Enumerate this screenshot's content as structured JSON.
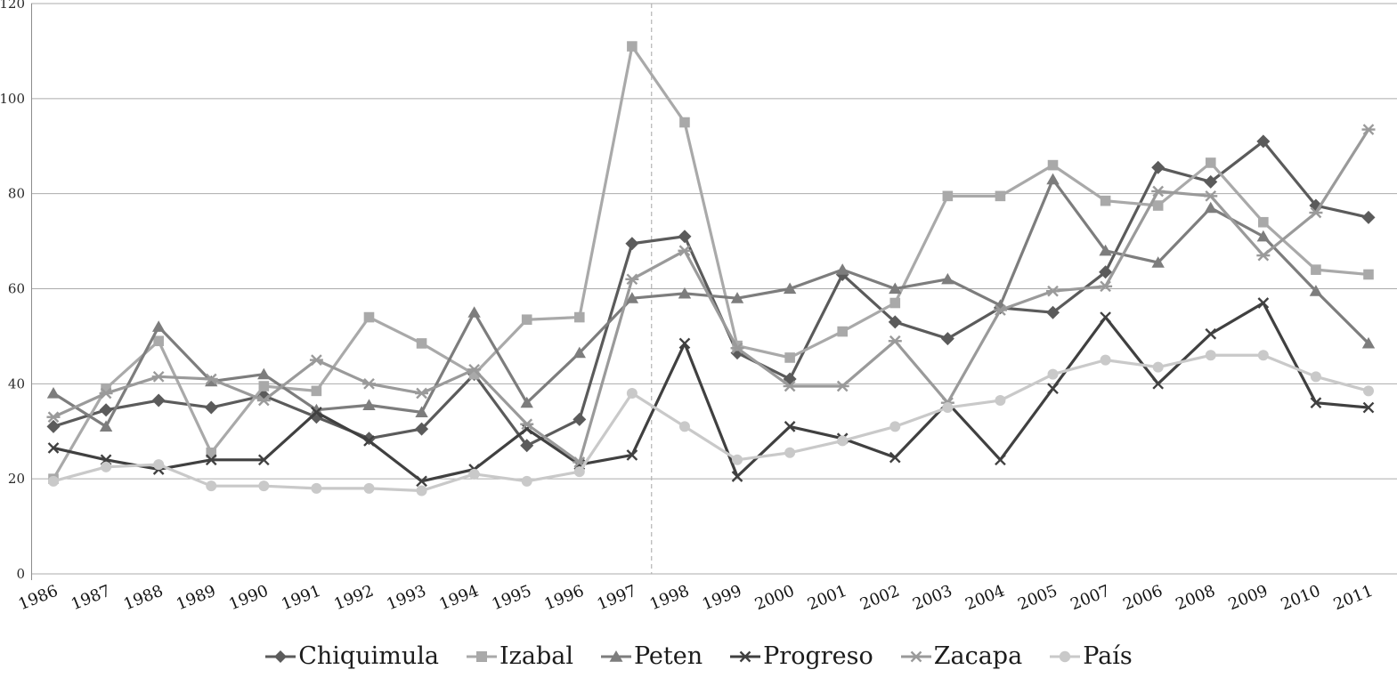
{
  "chart_data": {
    "type": "line",
    "title": "",
    "xlabel": "",
    "ylabel": "",
    "ylim": [
      0,
      120
    ],
    "yticks": [
      0,
      20,
      40,
      60,
      80,
      100,
      120
    ],
    "grid": "horizontal",
    "legend_position": "bottom",
    "x_labels": [
      "1986",
      "1987",
      "1988",
      "1989",
      "1990",
      "1991",
      "1992",
      "1993",
      "1994",
      "1995",
      "1996",
      "1997",
      "1998",
      "1999",
      "2000",
      "2001",
      "2002",
      "2003",
      "2004",
      "2005",
      "2007",
      "2006",
      "2008",
      "2009",
      "2010",
      "2011"
    ],
    "dashed_vline_between": [
      "1997",
      "1998"
    ],
    "dashed_vline_index": 11.37,
    "colors": {
      "gridline": "#ababab",
      "axis": "#8c8c8c",
      "dashed_line": "#b3b3b3",
      "tick_text": "#2a2a2a"
    },
    "series": [
      {
        "name": "Chiquimula",
        "marker": "diamond",
        "color": "#5b5b5b",
        "values": [
          31,
          34.5,
          36.5,
          35,
          37.5,
          33,
          28.5,
          30.5,
          42,
          27,
          32.5,
          69.5,
          71,
          46.5,
          41,
          63,
          53,
          49.5,
          56,
          55,
          63.5,
          85.5,
          82.5,
          91,
          77.5,
          75
        ]
      },
      {
        "name": "Izabal",
        "marker": "square",
        "color": "#a9a9a9",
        "values": [
          20,
          39,
          49,
          25.5,
          39.5,
          38.5,
          54,
          48.5,
          42,
          53.5,
          54,
          111,
          95,
          48,
          45.5,
          51,
          57,
          79.5,
          79.5,
          86,
          78.5,
          77.5,
          86.5,
          74,
          64,
          63
        ]
      },
      {
        "name": "Peten",
        "marker": "triangle",
        "color": "#7d7d7d",
        "values": [
          38,
          31,
          52,
          40.5,
          42,
          34.5,
          35.5,
          34,
          55,
          36,
          46.5,
          58,
          59,
          58,
          60,
          64,
          60,
          62,
          56.5,
          83,
          68,
          65.5,
          77,
          71,
          59.5,
          48.5
        ]
      },
      {
        "name": "Progreso",
        "marker": "x",
        "color": "#404040",
        "values": [
          26.5,
          24,
          22,
          24,
          24,
          34,
          28,
          19.5,
          22,
          30.5,
          23,
          25,
          48.5,
          20.5,
          31,
          28.5,
          24.5,
          36,
          24,
          39,
          54,
          40,
          50.5,
          57,
          36,
          35
        ]
      },
      {
        "name": "Zacapa",
        "marker": "asterisk",
        "color": "#9a9a9a",
        "values": [
          33,
          38,
          41.5,
          41,
          36.5,
          45,
          40,
          38,
          43,
          31.5,
          23.5,
          62,
          68,
          47.5,
          39.5,
          39.5,
          49,
          36,
          55.5,
          59.5,
          60.5,
          80.5,
          79.5,
          67,
          76,
          93.5
        ]
      },
      {
        "name": "País",
        "marker": "circle",
        "color": "#c9c9c9",
        "values": [
          19.5,
          22.5,
          23,
          18.5,
          18.5,
          18,
          18,
          17.5,
          21,
          19.5,
          21.5,
          38,
          31,
          24,
          25.5,
          28,
          31,
          35,
          36.5,
          42,
          45,
          43.5,
          46,
          46,
          41.5,
          38.5
        ]
      }
    ]
  }
}
